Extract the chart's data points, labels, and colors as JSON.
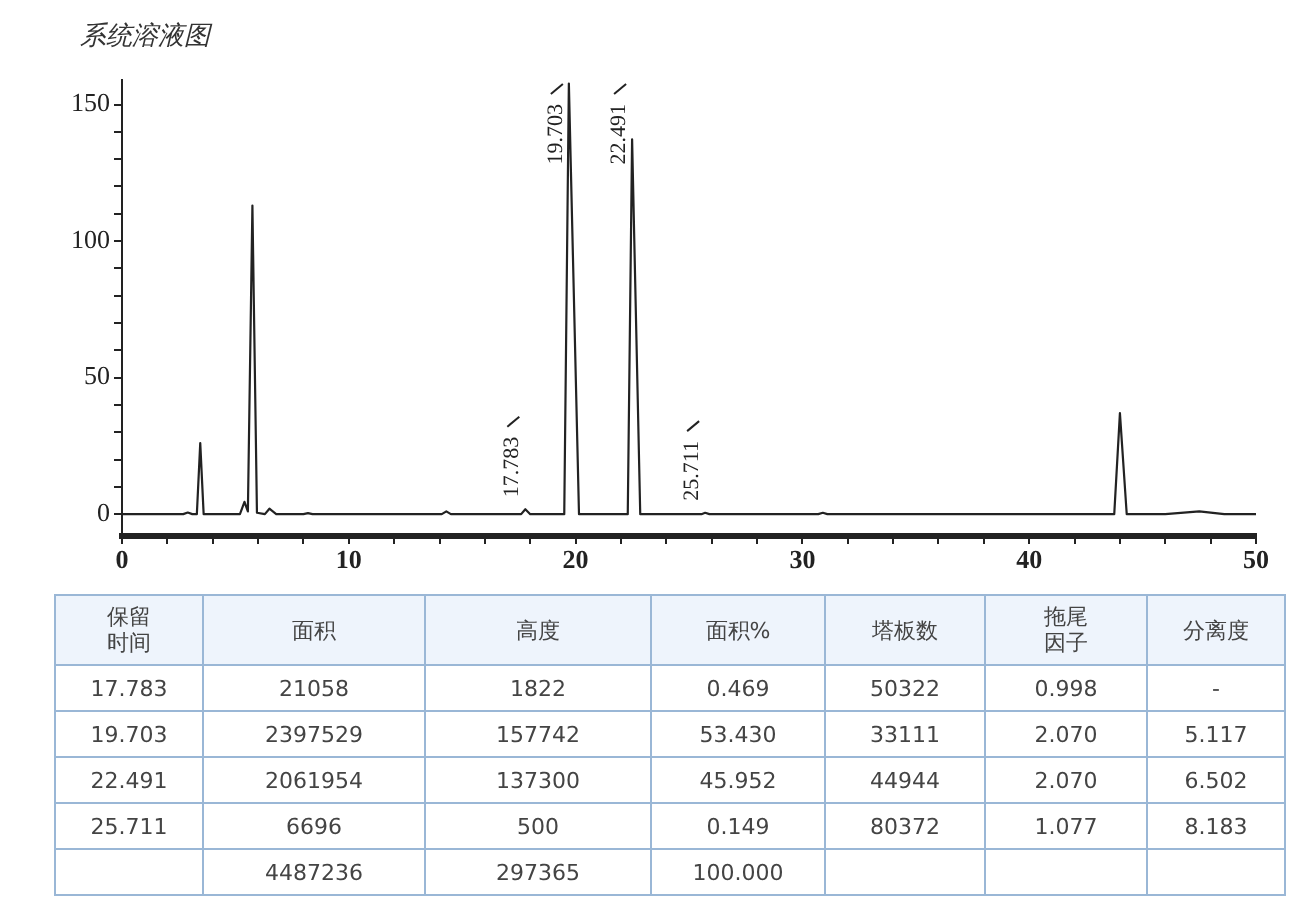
{
  "chart_data": {
    "type": "line",
    "title": "系统溶液图",
    "series": [
      {
        "color": "#222222",
        "x": [
          0,
          2.7,
          2.9,
          3.1,
          3.3,
          3.45,
          3.6,
          5.2,
          5.4,
          5.55,
          5.75,
          5.95,
          6.3,
          6.5,
          6.8,
          8,
          8.2,
          8.4,
          14.1,
          14.3,
          14.5,
          17.6,
          17.783,
          18,
          19.5,
          19.703,
          20.15,
          22.3,
          22.491,
          22.85,
          25.55,
          25.711,
          25.9,
          30.7,
          30.9,
          31.1,
          43.75,
          44,
          44.3,
          46,
          47.5,
          48.6,
          50
        ],
        "values": [
          0,
          0,
          0.6,
          0,
          0,
          26,
          0,
          0,
          4.5,
          1,
          113,
          0.5,
          0,
          2,
          0,
          0,
          0.4,
          0,
          0,
          1,
          0,
          0,
          1.8,
          0,
          0,
          157.7,
          0,
          0,
          137.3,
          0,
          0,
          0.5,
          0,
          0,
          0.5,
          0,
          0,
          37,
          0,
          0,
          1,
          0,
          0
        ]
      }
    ],
    "xlim": [
      0,
      50
    ],
    "ylim": [
      -8,
      159
    ],
    "xticks": [
      0,
      {
        "value": 2,
        "label": null
      },
      {
        "value": 4,
        "label": null
      },
      {
        "value": 6,
        "label": null
      },
      {
        "value": 8,
        "label": null
      },
      10,
      {
        "value": 12,
        "label": null
      },
      {
        "value": 14,
        "label": null
      },
      {
        "value": 16,
        "label": null
      },
      {
        "value": 18,
        "label": null
      },
      20,
      {
        "value": 22,
        "label": null
      },
      {
        "value": 24,
        "label": null
      },
      {
        "value": 26,
        "label": null
      },
      {
        "value": 28,
        "label": null
      },
      30,
      {
        "value": 32,
        "label": null
      },
      {
        "value": 34,
        "label": null
      },
      {
        "value": 36,
        "label": null
      },
      {
        "value": 38,
        "label": null
      },
      40,
      {
        "value": 42,
        "label": null
      },
      {
        "value": 44,
        "label": null
      },
      {
        "value": 46,
        "label": null
      },
      {
        "value": 48,
        "label": null
      },
      50
    ],
    "yticks": [
      0,
      {
        "value": 10,
        "label": null
      },
      {
        "value": 20,
        "label": null
      },
      {
        "value": 30,
        "label": null
      },
      {
        "value": 40,
        "label": null
      },
      50,
      {
        "value": 60,
        "label": null
      },
      {
        "value": 70,
        "label": null
      },
      {
        "value": 80,
        "label": null
      },
      {
        "value": 90,
        "label": null
      },
      100,
      {
        "value": 110,
        "label": null
      },
      {
        "value": 120,
        "label": null
      },
      {
        "value": 130,
        "label": null
      },
      {
        "value": 140,
        "label": null
      },
      150
    ],
    "grid": false,
    "legend": false,
    "marker": "none",
    "line_style": "solid",
    "annotations": [
      {
        "text": "17.783",
        "x": 17.783,
        "y": 1.8
      },
      {
        "text": "19.703",
        "x": 19.703,
        "y": 157.7
      },
      {
        "text": "22.491",
        "x": 22.491,
        "y": 137.3
      },
      {
        "text": "25.711",
        "x": 25.711,
        "y": 0.5
      },
      "保留时间",
      "面积",
      "高度",
      "面积%",
      "塔板数",
      "拖尾因子",
      "分离度",
      "17.783",
      "21058",
      "1822",
      "0.469",
      "50322",
      "0.998",
      "-",
      "19.703",
      "2397529",
      "157742",
      "53.430",
      "33111",
      "2.070",
      "5.117",
      "22.491",
      "2061954",
      "137300",
      "45.952",
      "44944",
      "2.070",
      "6.502",
      "25.711",
      "6696",
      "500",
      "0.149",
      "80372",
      "1.077",
      "8.183",
      null,
      "4487236",
      "297365",
      "100.000",
      null,
      null,
      null
    ]
  }
}
